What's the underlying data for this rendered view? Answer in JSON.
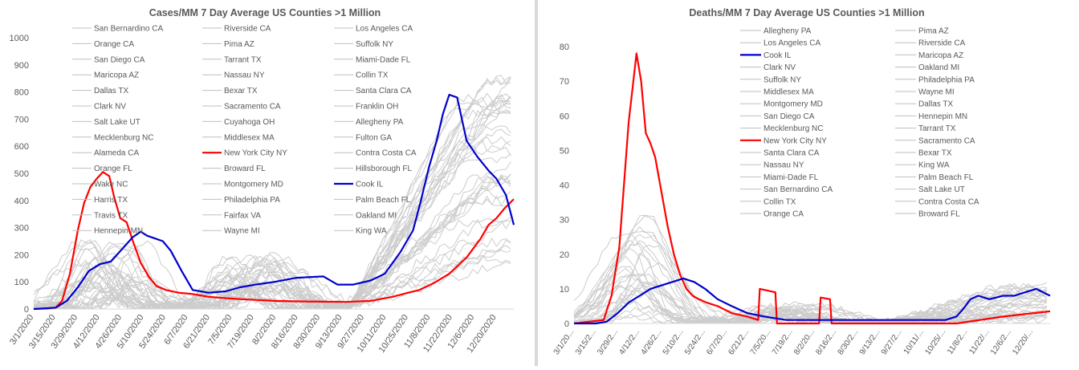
{
  "chart_data": [
    {
      "type": "line",
      "title": "Cases/MM 7 Day Average US Counties >1 Million",
      "xlabel": "",
      "ylabel": "",
      "ylim": [
        0,
        1000
      ],
      "yticks": [
        0,
        100,
        200,
        300,
        400,
        500,
        600,
        700,
        800,
        900,
        1000
      ],
      "x_tick_labels": [
        "3/1/2020",
        "3/15/2020",
        "3/29/2020",
        "4/12/2020",
        "4/26/2020",
        "5/10/2020",
        "5/24/2020",
        "6/7/2020",
        "6/21/2020",
        "7/5/2020",
        "7/19/2020",
        "8/2/2020",
        "8/16/2020",
        "8/30/2020",
        "9/13/2020",
        "9/27/2020",
        "10/11/2020",
        "10/25/2020",
        "11/8/2020",
        "11/22/2020",
        "12/6/2020",
        "12/20/2020"
      ],
      "x_start": "3/1/2020",
      "x_end": "12/31/2020",
      "legend_position": "top (inside plot, 3 columns)",
      "grid": false,
      "legend": [
        "San Bernardino CA",
        "Riverside CA",
        "Los Angeles CA",
        "Orange CA",
        "Pima AZ",
        "Suffolk NY",
        "San Diego CA",
        "Tarrant TX",
        "Miami-Dade FL",
        "Maricopa AZ",
        "Nassau NY",
        "Collin TX",
        "Dallas TX",
        "Bexar TX",
        "Santa Clara CA",
        "Clark NV",
        "Sacramento CA",
        "Franklin OH",
        "Salt Lake UT",
        "Cuyahoga OH",
        "Allegheny PA",
        "Mecklenburg NC",
        "Middlesex MA",
        "Fulton GA",
        "Alameda CA",
        "New York City NY",
        "Contra Costa CA",
        "Orange FL",
        "Broward FL",
        "Hillsborough FL",
        "Wake NC",
        "Montgomery MD",
        "Cook IL",
        "Harris TX",
        "Philadelphia PA",
        "Palm Beach FL",
        "Travis TX",
        "Fairfax VA",
        "Oakland MI",
        "Hennepin MN",
        "Wayne MI",
        "King WA"
      ],
      "series": [
        {
          "name": "New York City NY",
          "color": "#ff0000",
          "x": [
            "3/1/2020",
            "3/10/2020",
            "3/15/2020",
            "3/19/2020",
            "3/24/2020",
            "3/29/2020",
            "4/2/2020",
            "4/6/2020",
            "4/10/2020",
            "4/14/2020",
            "4/18/2020",
            "4/21/2020",
            "4/25/2020",
            "4/29/2020",
            "5/3/2020",
            "5/8/2020",
            "5/13/2020",
            "5/18/2020",
            "5/24/2020",
            "6/1/2020",
            "6/10/2020",
            "6/20/2020",
            "7/1/2020",
            "7/15/2020",
            "8/1/2020",
            "8/15/2020",
            "9/1/2020",
            "9/15/2020",
            "10/1/2020",
            "10/15/2020",
            "10/25/2020",
            "11/1/2020",
            "11/10/2020",
            "11/20/2020",
            "12/1/2020",
            "12/10/2020",
            "12/15/2020",
            "12/20/2020",
            "12/25/2020",
            "12/31/2020"
          ],
          "y": [
            0,
            2,
            5,
            30,
            130,
            290,
            390,
            450,
            480,
            505,
            490,
            415,
            335,
            320,
            250,
            170,
            120,
            85,
            70,
            60,
            55,
            45,
            40,
            35,
            30,
            28,
            27,
            26,
            30,
            45,
            60,
            70,
            95,
            130,
            190,
            260,
            310,
            335,
            370,
            405
          ]
        },
        {
          "name": "Cook IL",
          "color": "#0000cc",
          "x": [
            "3/1/2020",
            "3/15/2020",
            "3/22/2020",
            "3/29/2020",
            "4/5/2020",
            "4/12/2020",
            "4/19/2020",
            "4/26/2020",
            "5/3/2020",
            "5/8/2020",
            "5/12/2020",
            "5/17/2020",
            "5/22/2020",
            "5/27/2020",
            "6/3/2020",
            "6/10/2020",
            "6/20/2020",
            "7/1/2020",
            "7/10/2020",
            "7/20/2020",
            "8/1/2020",
            "8/15/2020",
            "9/1/2020",
            "9/10/2020",
            "9/20/2020",
            "10/1/2020",
            "10/10/2020",
            "10/20/2020",
            "10/28/2020",
            "11/2/2020",
            "11/7/2020",
            "11/12/2020",
            "11/16/2020",
            "11/20/2020",
            "11/25/2020",
            "12/1/2020",
            "12/8/2020",
            "12/15/2020",
            "12/20/2020",
            "12/26/2020",
            "12/31/2020"
          ],
          "y": [
            0,
            5,
            30,
            80,
            140,
            165,
            175,
            220,
            265,
            285,
            270,
            260,
            250,
            215,
            140,
            70,
            60,
            65,
            80,
            90,
            100,
            115,
            120,
            90,
            90,
            105,
            130,
            210,
            290,
            400,
            520,
            620,
            720,
            790,
            780,
            620,
            560,
            510,
            480,
            420,
            310
          ]
        }
      ],
      "background_series_color": "#cccccc"
    },
    {
      "type": "line",
      "title": "Deaths/MM 7 Day Average US Counties >1 Million",
      "xlabel": "",
      "ylabel": "",
      "ylim": [
        0,
        80
      ],
      "yticks": [
        0,
        10,
        20,
        30,
        40,
        50,
        60,
        70,
        80
      ],
      "x_tick_labels": [
        "3/1/20...",
        "3/15/2...",
        "3/29/2...",
        "4/12/2...",
        "4/26/2...",
        "5/10/2...",
        "5/24/2...",
        "6/7/20...",
        "6/21/2...",
        "7/5/20...",
        "7/19/2...",
        "8/2/20...",
        "8/16/2...",
        "8/30/2...",
        "9/13/2...",
        "9/27/2...",
        "10/11/...",
        "10/25/...",
        "11/8/2...",
        "11/22/...",
        "12/6/2...",
        "12/20/..."
      ],
      "x_start": "3/1/2020",
      "x_end": "12/31/2020",
      "legend_position": "top (inside plot, 2 columns)",
      "grid": false,
      "legend": [
        "Allegheny PA",
        "Pima AZ",
        "Los Angeles CA",
        "Riverside CA",
        "Cook IL",
        "Maricopa AZ",
        "Clark NV",
        "Oakland MI",
        "Suffolk NY",
        "Philadelphia PA",
        "Middlesex MA",
        "Wayne MI",
        "Montgomery MD",
        "Dallas TX",
        "San Diego CA",
        "Hennepin MN",
        "Mecklenburg NC",
        "Tarrant TX",
        "New York City NY",
        "Sacramento CA",
        "Santa Clara CA",
        "Bexar TX",
        "Nassau NY",
        "King WA",
        "Miami-Dade FL",
        "Palm Beach FL",
        "San Bernardino CA",
        "Salt Lake UT",
        "Collin TX",
        "Contra Costa CA",
        "Orange CA",
        "Broward FL"
      ],
      "series": [
        {
          "name": "New York City NY",
          "color": "#ff0000",
          "x": [
            "3/1/2020",
            "3/20/2020",
            "3/25/2020",
            "3/30/2020",
            "4/2/2020",
            "4/5/2020",
            "4/8/2020",
            "4/10/2020",
            "4/13/2020",
            "4/16/2020",
            "4/19/2020",
            "4/22/2020",
            "4/26/2020",
            "4/30/2020",
            "5/4/2020",
            "5/8/2020",
            "5/12/2020",
            "5/16/2020",
            "5/20/2020",
            "5/25/2020",
            "6/1/2020",
            "6/10/2020",
            "6/20/2020",
            "6/27/2020",
            "6/28/2020",
            "7/8/2020",
            "7/9/2020",
            "7/20/2020",
            "8/5/2020",
            "8/6/2020",
            "8/12/2020",
            "8/13/2020",
            "9/1/2020",
            "10/1/2020",
            "11/1/2020",
            "12/1/2020",
            "12/31/2020"
          ],
          "y": [
            0,
            1,
            8,
            22,
            40,
            58,
            70,
            78,
            70,
            55,
            52,
            48,
            38,
            28,
            20,
            14,
            10,
            8,
            7,
            6,
            5,
            3,
            2,
            1,
            10,
            9,
            0,
            0,
            0,
            7.5,
            7,
            0,
            0,
            0,
            0,
            2,
            3.5
          ]
        },
        {
          "name": "Cook IL",
          "color": "#0000cc",
          "x": [
            "3/1/2020",
            "3/15/2020",
            "3/22/2020",
            "3/29/2020",
            "4/5/2020",
            "4/12/2020",
            "4/19/2020",
            "4/26/2020",
            "5/3/2020",
            "5/10/2020",
            "5/17/2020",
            "5/24/2020",
            "6/1/2020",
            "6/10/2020",
            "6/20/2020",
            "7/1/2020",
            "7/15/2020",
            "8/1/2020",
            "8/15/2020",
            "9/1/2020",
            "9/15/2020",
            "10/1/2020",
            "10/15/2020",
            "10/25/2020",
            "11/1/2020",
            "11/5/2020",
            "11/10/2020",
            "11/15/2020",
            "11/22/2020",
            "12/1/2020",
            "12/8/2020",
            "12/15/2020",
            "12/22/2020",
            "12/31/2020"
          ],
          "y": [
            0,
            0,
            0.5,
            3,
            6,
            8,
            10,
            11,
            12,
            13,
            12,
            10,
            7,
            5,
            3,
            2,
            1,
            1,
            1,
            1,
            1,
            1,
            1,
            1,
            2,
            4,
            7,
            8,
            7,
            8,
            8,
            9,
            10,
            8
          ]
        }
      ],
      "background_series_color": "#cccccc"
    }
  ]
}
